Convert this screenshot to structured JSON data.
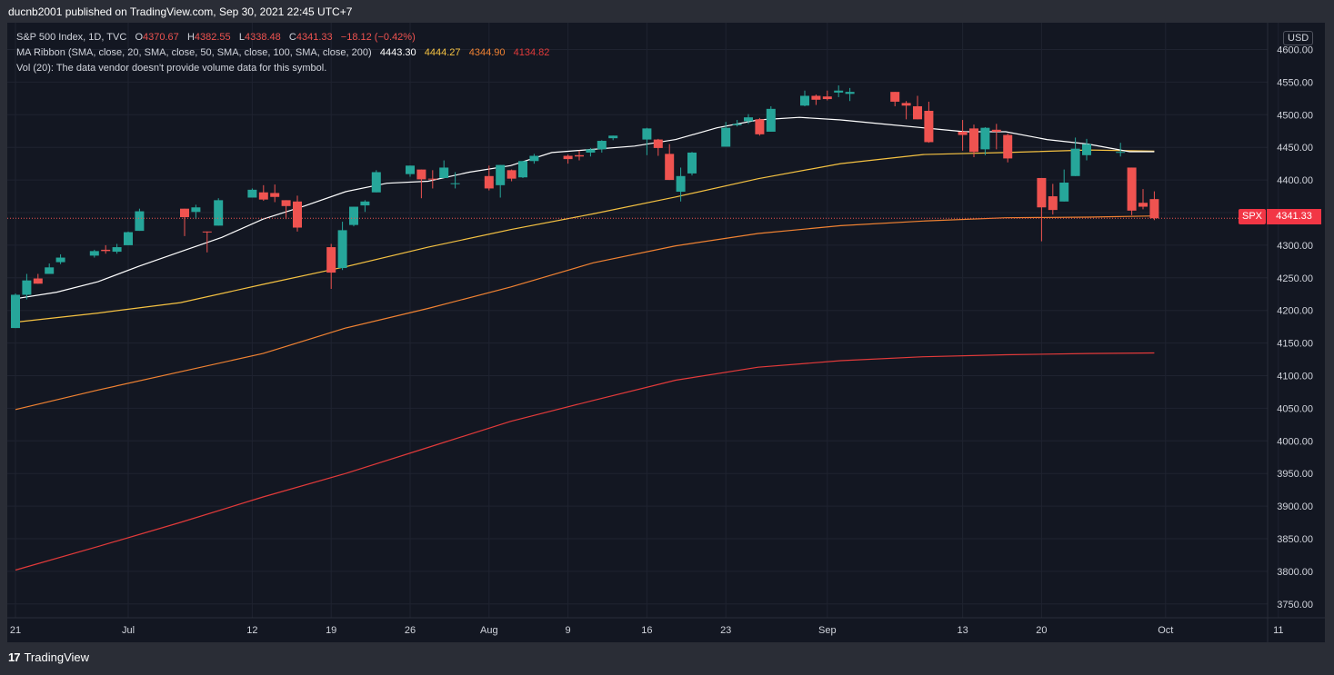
{
  "header": {
    "publisher_line": "ducnb2001 published on TradingView.com, Sep 30, 2021 22:45 UTC+7"
  },
  "legend": {
    "symbol": "S&P 500 Index, 1D, TVC",
    "ohlc": {
      "o_label": "O",
      "o": "4370.67",
      "h_label": "H",
      "h": "4382.55",
      "l_label": "L",
      "l": "4338.48",
      "c_label": "C",
      "c": "4341.33",
      "chg": "−18.12 (−0.42%)"
    },
    "ma_title": "MA Ribbon (SMA, close, 20, SMA, close, 50, SMA, close, 100, SMA, close, 200)",
    "ma_values": [
      "4443.30",
      "4444.27",
      "4344.90",
      "4134.82"
    ],
    "vol": "Vol (20): The data vendor doesn't provide volume data for this symbol."
  },
  "price_scale": {
    "currency": "USD",
    "symbol_tag": "SPX",
    "last_price": "4341.33"
  },
  "footer": {
    "brand": "TradingView",
    "logo": "17"
  },
  "colors": {
    "up": "#26a69a",
    "down": "#ef5350",
    "ma20": "#ffffff",
    "ma50": "#f5c242",
    "ma100": "#f08232",
    "ma200": "#e23a3a",
    "background": "#131722"
  },
  "chart_data": {
    "type": "candlestick",
    "symbol": "S&P 500 Index",
    "interval": "1D",
    "y_ticks": [
      3750,
      3800,
      3850,
      3900,
      3950,
      4000,
      4050,
      4100,
      4150,
      4200,
      4250,
      4300,
      4350,
      4400,
      4450,
      4500,
      4550,
      4600
    ],
    "ylim": [
      3730,
      4620
    ],
    "x_ticks": [
      {
        "label": "21",
        "date": "2021-06-21"
      },
      {
        "label": "Jul",
        "date": "2021-07-01"
      },
      {
        "label": "12",
        "date": "2021-07-12"
      },
      {
        "label": "19",
        "date": "2021-07-19"
      },
      {
        "label": "26",
        "date": "2021-07-26"
      },
      {
        "label": "Aug",
        "date": "2021-08-02"
      },
      {
        "label": "9",
        "date": "2021-08-09"
      },
      {
        "label": "16",
        "date": "2021-08-16"
      },
      {
        "label": "23",
        "date": "2021-08-23"
      },
      {
        "label": "Sep",
        "date": "2021-09-01"
      },
      {
        "label": "13",
        "date": "2021-09-13"
      },
      {
        "label": "20",
        "date": "2021-09-20"
      },
      {
        "label": "Oct",
        "date": "2021-10-01"
      },
      {
        "label": "11",
        "date": "2021-10-11"
      }
    ],
    "candles": [
      [
        "2021-06-21",
        4173,
        4226,
        4173,
        4224
      ],
      [
        "2021-06-22",
        4224,
        4256,
        4217,
        4246
      ],
      [
        "2021-06-23",
        4249,
        4256,
        4241,
        4241
      ],
      [
        "2021-06-24",
        4256,
        4272,
        4256,
        4266
      ],
      [
        "2021-06-25",
        4274,
        4286,
        4271,
        4281
      ],
      [
        "2021-06-28",
        4284,
        4293,
        4281,
        4291
      ],
      [
        "2021-06-29",
        4293,
        4300,
        4287,
        4291
      ],
      [
        "2021-06-30",
        4290,
        4302,
        4287,
        4297
      ],
      [
        "2021-07-01",
        4300,
        4321,
        4300,
        4320
      ],
      [
        "2021-07-02",
        4322,
        4356,
        4322,
        4352
      ],
      [
        "2021-07-06",
        4356,
        4356,
        4314,
        4343
      ],
      [
        "2021-07-07",
        4351,
        4362,
        4340,
        4358
      ],
      [
        "2021-07-08",
        4321,
        4321,
        4289,
        4320
      ],
      [
        "2021-07-09",
        4330,
        4372,
        4330,
        4369
      ],
      [
        "2021-07-12",
        4373,
        4387,
        4373,
        4385
      ],
      [
        "2021-07-13",
        4381,
        4392,
        4368,
        4370
      ],
      [
        "2021-07-14",
        4380,
        4393,
        4366,
        4374
      ],
      [
        "2021-07-15",
        4369,
        4369,
        4340,
        4360
      ],
      [
        "2021-07-16",
        4367,
        4376,
        4321,
        4327
      ],
      [
        "2021-07-19",
        4297,
        4302,
        4233,
        4258
      ],
      [
        "2021-07-20",
        4265,
        4336,
        4262,
        4323
      ],
      [
        "2021-07-21",
        4331,
        4359,
        4329,
        4359
      ],
      [
        "2021-07-22",
        4361,
        4369,
        4351,
        4367
      ],
      [
        "2021-07-23",
        4381,
        4415,
        4381,
        4412
      ],
      [
        "2021-07-26",
        4409,
        4422,
        4405,
        4422
      ],
      [
        "2021-07-27",
        4416,
        4416,
        4372,
        4401
      ],
      [
        "2021-07-28",
        4402,
        4415,
        4387,
        4401
      ],
      [
        "2021-07-29",
        4403,
        4430,
        4403,
        4419
      ],
      [
        "2021-07-30",
        4395,
        4412,
        4387,
        4395
      ],
      [
        "2021-08-02",
        4406,
        4422,
        4384,
        4387
      ],
      [
        "2021-08-03",
        4392,
        4423,
        4373,
        4423
      ],
      [
        "2021-08-04",
        4415,
        4416,
        4398,
        4402
      ],
      [
        "2021-08-05",
        4404,
        4429,
        4403,
        4429
      ],
      [
        "2021-08-06",
        4429,
        4440,
        4425,
        4437
      ],
      [
        "2021-08-09",
        4437,
        4439,
        4425,
        4432
      ],
      [
        "2021-08-10",
        4438,
        4445,
        4430,
        4436
      ],
      [
        "2021-08-11",
        4442,
        4449,
        4436,
        4447
      ],
      [
        "2021-08-12",
        4447,
        4461,
        4442,
        4460
      ],
      [
        "2021-08-13",
        4464,
        4468,
        4461,
        4468
      ],
      [
        "2021-08-16",
        4462,
        4480,
        4438,
        4479
      ],
      [
        "2021-08-17",
        4462,
        4463,
        4437,
        4449
      ],
      [
        "2021-08-18",
        4440,
        4455,
        4400,
        4400
      ],
      [
        "2021-08-19",
        4382,
        4419,
        4367,
        4406
      ],
      [
        "2021-08-20",
        4410,
        4443,
        4407,
        4442
      ],
      [
        "2021-08-23",
        4451,
        4489,
        4451,
        4480
      ],
      [
        "2021-08-24",
        4484,
        4492,
        4482,
        4486
      ],
      [
        "2021-08-25",
        4490,
        4501,
        4486,
        4496
      ],
      [
        "2021-08-26",
        4493,
        4495,
        4468,
        4470
      ],
      [
        "2021-08-27",
        4474,
        4513,
        4474,
        4509
      ],
      [
        "2021-08-30",
        4514,
        4537,
        4513,
        4529
      ],
      [
        "2021-08-31",
        4529,
        4531,
        4515,
        4523
      ],
      [
        "2021-09-01",
        4528,
        4537,
        4522,
        4524
      ],
      [
        "2021-09-02",
        4534,
        4545,
        4527,
        4537
      ],
      [
        "2021-09-03",
        4532,
        4541,
        4521,
        4535
      ],
      [
        "2021-09-07",
        4535,
        4535,
        4513,
        4520
      ],
      [
        "2021-09-08",
        4518,
        4521,
        4493,
        4514
      ],
      [
        "2021-09-09",
        4513,
        4529,
        4493,
        4493
      ],
      [
        "2021-09-10",
        4506,
        4520,
        4457,
        4458
      ],
      [
        "2021-09-13",
        4474,
        4492,
        4445,
        4469
      ],
      [
        "2021-09-14",
        4479,
        4485,
        4435,
        4443
      ],
      [
        "2021-09-15",
        4447,
        4481,
        4438,
        4480
      ],
      [
        "2021-09-16",
        4477,
        4486,
        4447,
        4474
      ],
      [
        "2021-09-17",
        4469,
        4471,
        4427,
        4433
      ],
      [
        "2021-09-20",
        4403,
        4403,
        4306,
        4358
      ],
      [
        "2021-09-21",
        4375,
        4394,
        4347,
        4354
      ],
      [
        "2021-09-22",
        4367,
        4416,
        4367,
        4396
      ],
      [
        "2021-09-23",
        4406,
        4465,
        4406,
        4448
      ],
      [
        "2021-09-24",
        4438,
        4463,
        4430,
        4455
      ],
      [
        "2021-09-27",
        4442,
        4457,
        4436,
        4443
      ],
      [
        "2021-09-28",
        4419,
        4419,
        4346,
        4353
      ],
      [
        "2021-09-29",
        4365,
        4386,
        4355,
        4359
      ],
      [
        "2021-09-30",
        4370.67,
        4382.55,
        4338.48,
        4341.33
      ]
    ],
    "ma20": [
      [
        0,
        4218
      ],
      [
        10,
        4228
      ],
      [
        20,
        4244
      ],
      [
        30,
        4268
      ],
      [
        40,
        4290
      ],
      [
        50,
        4312
      ],
      [
        60,
        4340
      ],
      [
        70,
        4360
      ],
      [
        80,
        4382
      ],
      [
        90,
        4395
      ],
      [
        100,
        4398
      ],
      [
        110,
        4412
      ],
      [
        120,
        4422
      ],
      [
        130,
        4442
      ],
      [
        140,
        4447
      ],
      [
        150,
        4452
      ],
      [
        160,
        4462
      ],
      [
        170,
        4480
      ],
      [
        180,
        4492
      ],
      [
        190,
        4496
      ],
      [
        200,
        4492
      ],
      [
        210,
        4486
      ],
      [
        220,
        4480
      ],
      [
        230,
        4474
      ],
      [
        240,
        4474
      ],
      [
        250,
        4462
      ],
      [
        260,
        4455
      ],
      [
        270,
        4443.3
      ],
      [
        276,
        4443.3
      ]
    ],
    "ma50": [
      [
        0,
        4182
      ],
      [
        20,
        4196
      ],
      [
        40,
        4212
      ],
      [
        60,
        4240
      ],
      [
        80,
        4267
      ],
      [
        100,
        4297
      ],
      [
        120,
        4324
      ],
      [
        140,
        4348
      ],
      [
        160,
        4374
      ],
      [
        180,
        4402
      ],
      [
        200,
        4425
      ],
      [
        220,
        4439
      ],
      [
        240,
        4442
      ],
      [
        260,
        4446
      ],
      [
        276,
        4444.27
      ]
    ],
    "ma100": [
      [
        0,
        4048
      ],
      [
        20,
        4078
      ],
      [
        40,
        4106
      ],
      [
        60,
        4134
      ],
      [
        80,
        4173
      ],
      [
        100,
        4203
      ],
      [
        120,
        4236
      ],
      [
        140,
        4273
      ],
      [
        160,
        4299
      ],
      [
        180,
        4318
      ],
      [
        200,
        4330
      ],
      [
        220,
        4337
      ],
      [
        240,
        4342
      ],
      [
        260,
        4343
      ],
      [
        276,
        4344.9
      ]
    ],
    "ma200": [
      [
        0,
        3802
      ],
      [
        20,
        3838
      ],
      [
        40,
        3875
      ],
      [
        60,
        3914
      ],
      [
        80,
        3950
      ],
      [
        100,
        3990
      ],
      [
        120,
        4030
      ],
      [
        140,
        4062
      ],
      [
        160,
        4093
      ],
      [
        180,
        4113
      ],
      [
        200,
        4123
      ],
      [
        220,
        4129
      ],
      [
        240,
        4132
      ],
      [
        260,
        4134
      ],
      [
        276,
        4134.82
      ]
    ]
  }
}
